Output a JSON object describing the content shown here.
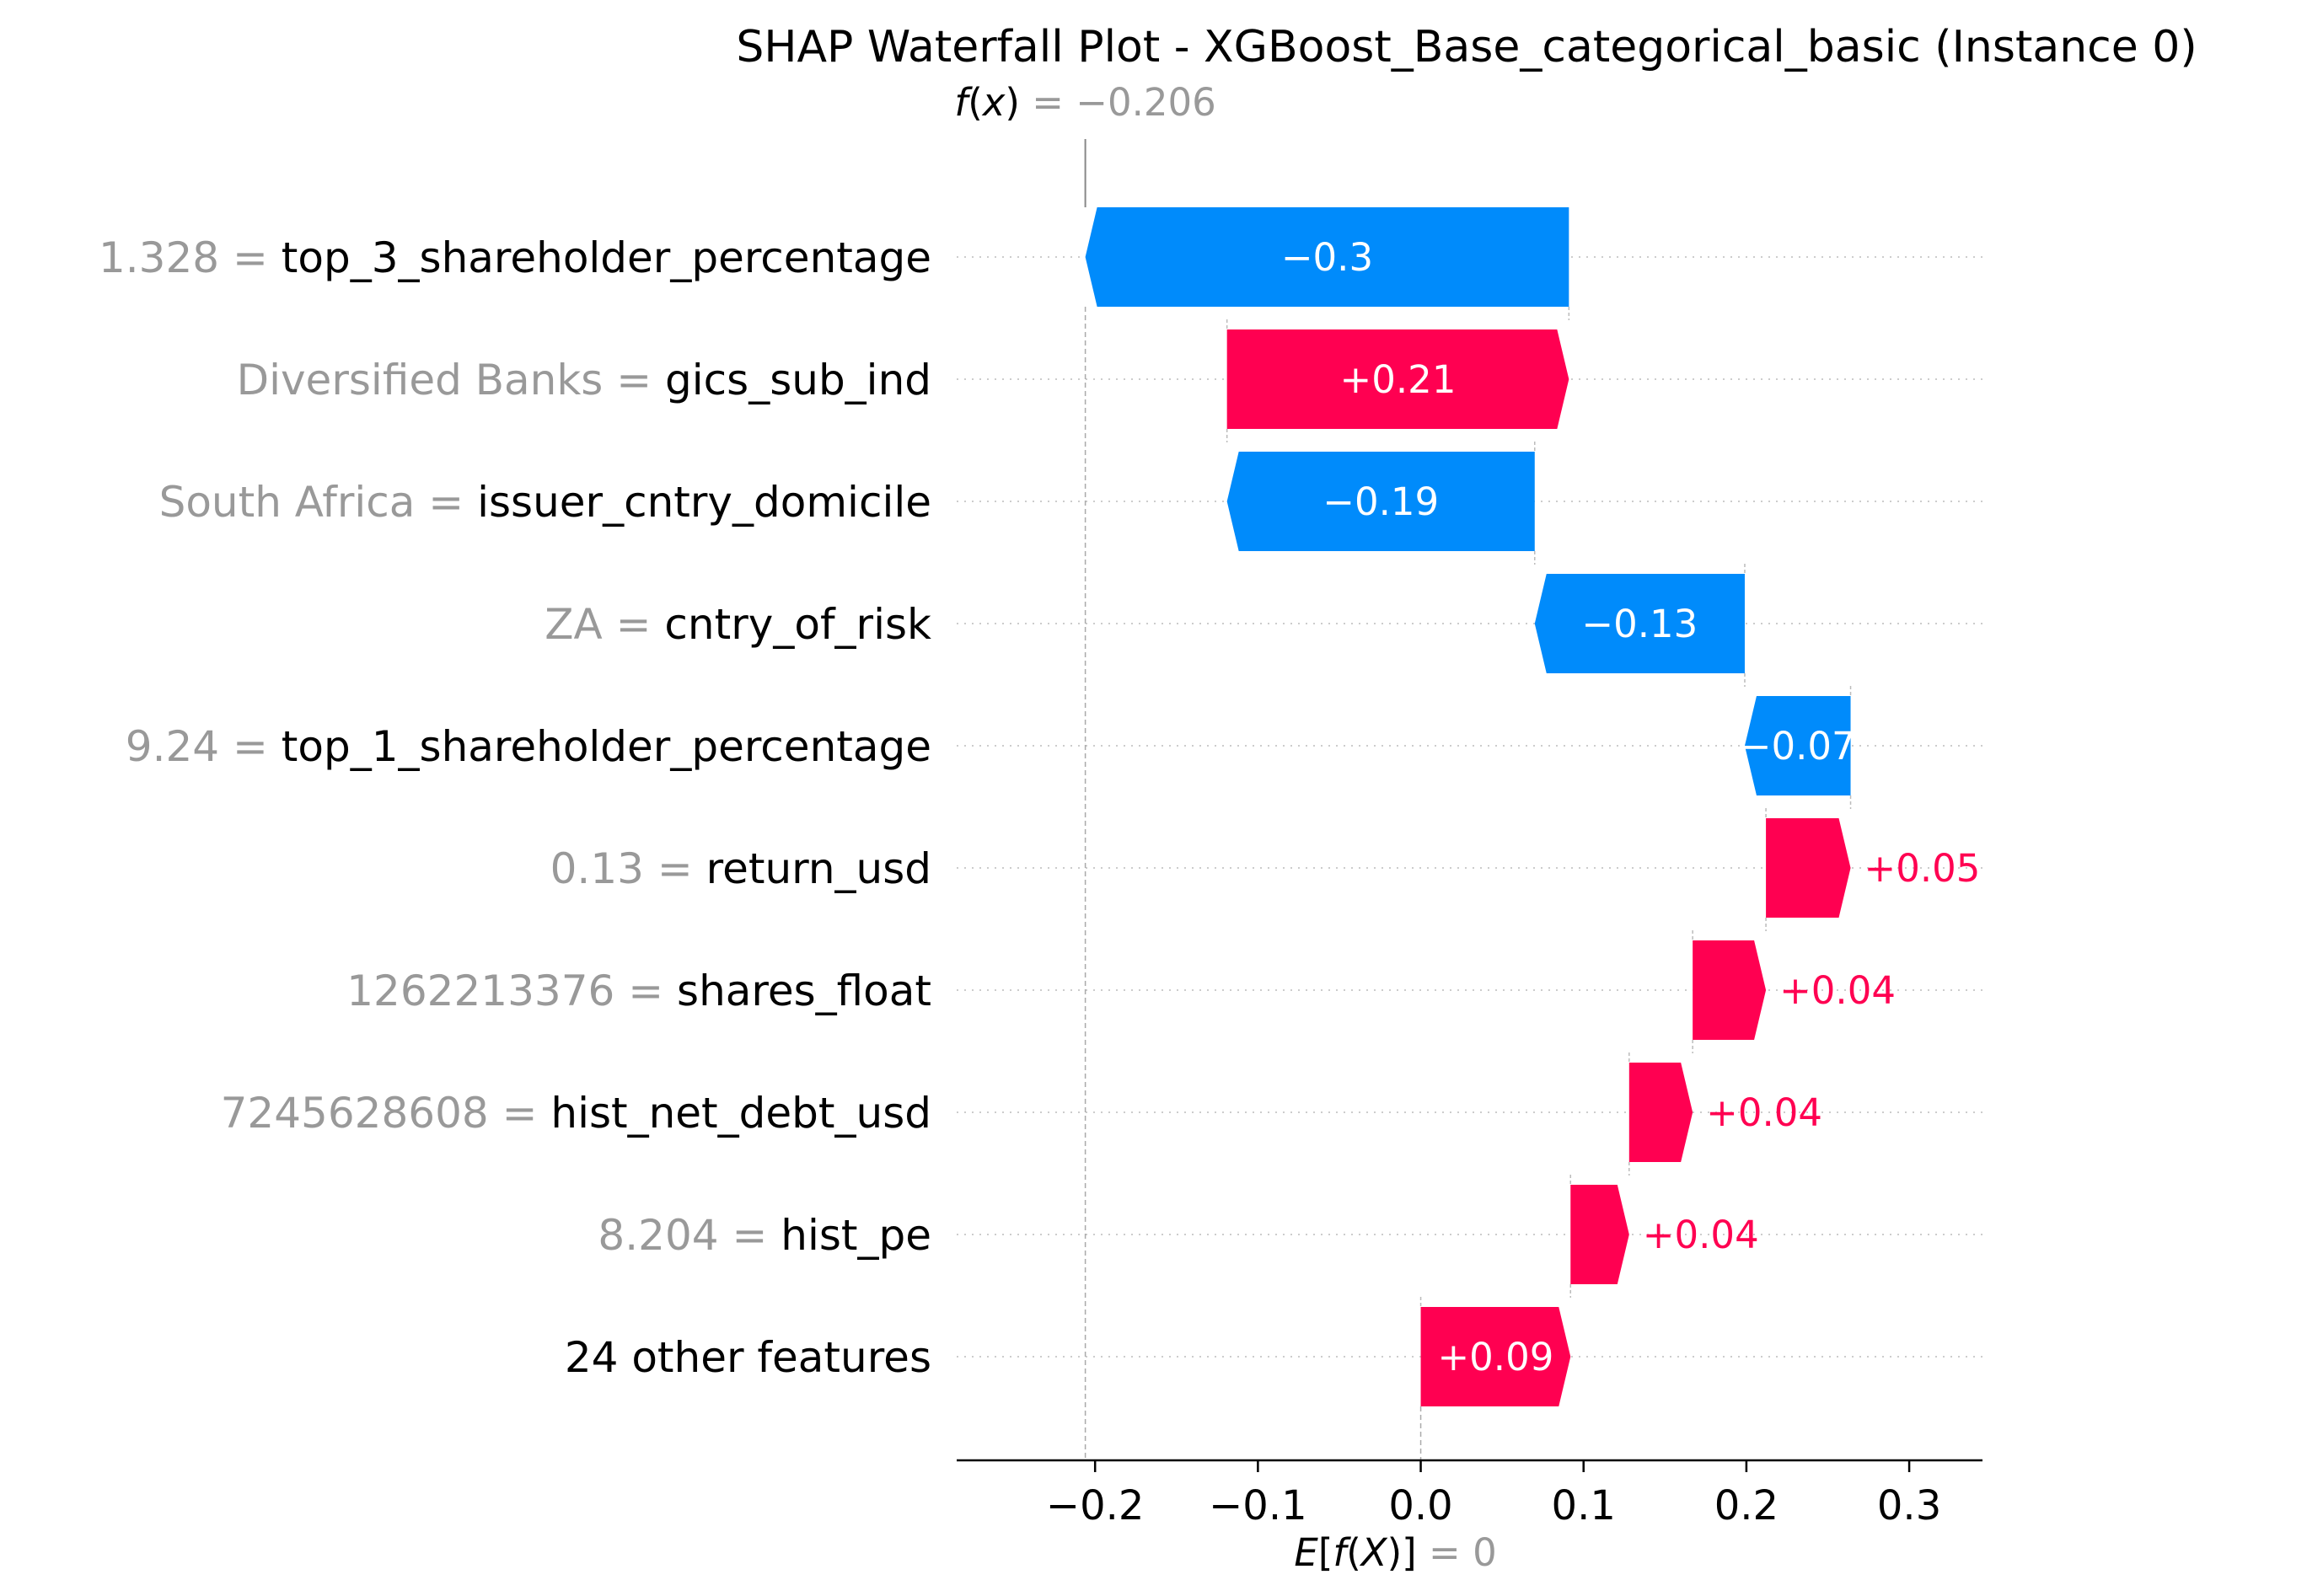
{
  "chart_data": {
    "type": "waterfall",
    "title": "SHAP Waterfall Plot - XGBoost_Base_categorical_basic (Instance 0)",
    "fx": {
      "label_main": "f",
      "label_var": "x",
      "value_text": "= −0.206",
      "value": -0.206
    },
    "ex": {
      "label_main": "E",
      "label_inner": "f",
      "label_var": "X",
      "value_text": "= 0",
      "value": 0
    },
    "xlim": [
      -0.285,
      0.345
    ],
    "xticks": [
      {
        "value": -0.2,
        "label": "−0.2"
      },
      {
        "value": -0.1,
        "label": "−0.1"
      },
      {
        "value": 0.0,
        "label": "0.0"
      },
      {
        "value": 0.1,
        "label": "0.1"
      },
      {
        "value": 0.2,
        "label": "0.2"
      },
      {
        "value": 0.3,
        "label": "0.3"
      }
    ],
    "features": [
      {
        "value_label": "1.328 =",
        "name": "top_3_shareholder_percentage",
        "start": 0.091,
        "end": -0.206,
        "label": "−0.3",
        "label_inside": true
      },
      {
        "value_label": "Diversified Banks =",
        "name": "gics_sub_ind",
        "start": -0.119,
        "end": 0.091,
        "label": "+0.21",
        "label_inside": true
      },
      {
        "value_label": "South Africa =",
        "name": "issuer_cntry_domicile",
        "start": 0.07,
        "end": -0.119,
        "label": "−0.19",
        "label_inside": true
      },
      {
        "value_label": "ZA =",
        "name": "cntry_of_risk",
        "start": 0.199,
        "end": 0.07,
        "label": "−0.13",
        "label_inside": true
      },
      {
        "value_label": "9.24 =",
        "name": "top_1_shareholder_percentage",
        "start": 0.264,
        "end": 0.199,
        "label": "−0.07",
        "label_inside": true
      },
      {
        "value_label": "0.13 =",
        "name": "return_usd",
        "start": 0.212,
        "end": 0.264,
        "label": "+0.05",
        "label_inside": false
      },
      {
        "value_label": "1262213376 =",
        "name": "shares_float",
        "start": 0.167,
        "end": 0.212,
        "label": "+0.04",
        "label_inside": false
      },
      {
        "value_label": "7245628608 =",
        "name": "hist_net_debt_usd",
        "start": 0.128,
        "end": 0.167,
        "label": "+0.04",
        "label_inside": false
      },
      {
        "value_label": "8.204 =",
        "name": "hist_pe",
        "start": 0.092,
        "end": 0.128,
        "label": "+0.04",
        "label_inside": false
      },
      {
        "value_label": "",
        "name": "24 other features",
        "start": 0.0,
        "end": 0.092,
        "label": "+0.09",
        "label_inside": true
      }
    ],
    "colors": {
      "positive": "#ff0051",
      "negative": "#008bfb",
      "text_gray": "#999999",
      "grid": "#cccccc"
    },
    "grid": true
  }
}
